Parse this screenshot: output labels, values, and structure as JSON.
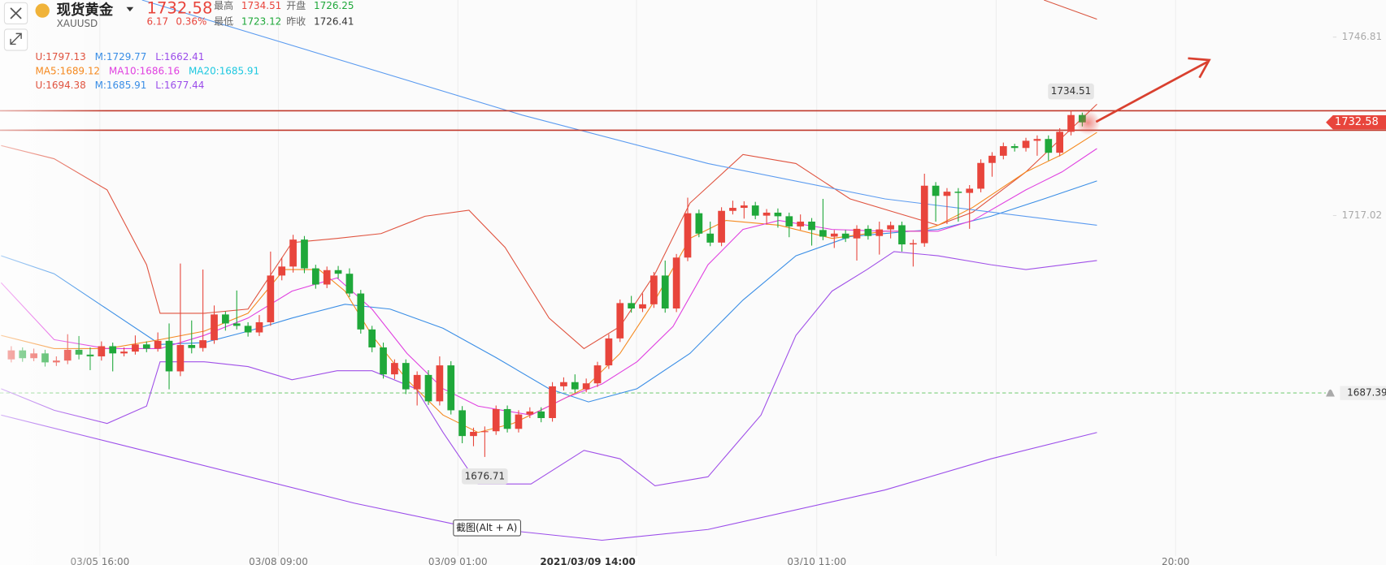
{
  "header": {
    "name": "现货黄金",
    "symbol": "XAUUSD",
    "price": "1732.58",
    "change": "6.17",
    "change_pct": "0.36%",
    "stats": [
      {
        "label": "最高",
        "value": "1734.51",
        "color": "#e8453c"
      },
      {
        "label": "开盘",
        "value": "1726.25",
        "color": "#1fa83a"
      },
      {
        "label": "最低",
        "value": "1723.12",
        "color": "#1fa83a"
      },
      {
        "label": "昨收",
        "value": "1726.41",
        "color": "#333333"
      }
    ]
  },
  "indicators": [
    [
      {
        "text": "U:1797.13",
        "color": "#e0533f"
      },
      {
        "text": "M:1729.77",
        "color": "#3a8ee6"
      },
      {
        "text": "L:1662.41",
        "color": "#9b4dea"
      }
    ],
    [
      {
        "text": "MA5:1689.12",
        "color": "#f5891f"
      },
      {
        "text": "MA10:1686.16",
        "color": "#e040e0"
      },
      {
        "text": "MA20:1685.91",
        "color": "#1ec8e0"
      }
    ],
    [
      {
        "text": "U:1694.38",
        "color": "#e0533f"
      },
      {
        "text": "M:1685.91",
        "color": "#3a8ee6"
      },
      {
        "text": "L:1677.44",
        "color": "#9b4dea"
      }
    ]
  ],
  "tooltip": "截图(Alt + A)",
  "chart_data": {
    "type": "candlestick",
    "up_color": "#e8453c",
    "down_color": "#1fa83a",
    "ylim": [
      1660,
      1753
    ],
    "yticks": [
      1746.81,
      1717.02
    ],
    "xlim": [
      -1,
      117
    ],
    "x_labels": [
      "03/05 16:00",
      "03/08 09:00",
      "03/09 01:00",
      "03/10 11:00",
      "20:00"
    ],
    "crosshair_label": "2021/03/09 14:00",
    "alert": 1687.39,
    "ohlc": [
      [
        1693.0,
        1695.2,
        1692.5,
        1694.5
      ],
      [
        1694.5,
        1695.0,
        1692.6,
        1693.2
      ],
      [
        1693.2,
        1694.8,
        1692.7,
        1694.0
      ],
      [
        1694.0,
        1694.6,
        1691.8,
        1692.5
      ],
      [
        1692.5,
        1693.5,
        1691.9,
        1692.8
      ],
      [
        1692.8,
        1697.2,
        1692.2,
        1694.6
      ],
      [
        1694.6,
        1696.9,
        1693.0,
        1693.8
      ],
      [
        1693.8,
        1695.0,
        1691.2,
        1693.5
      ],
      [
        1693.5,
        1696.0,
        1692.8,
        1695.2
      ],
      [
        1695.2,
        1695.8,
        1691.0,
        1694.0
      ],
      [
        1694.0,
        1695.0,
        1693.5,
        1694.3
      ],
      [
        1694.3,
        1697.0,
        1693.8,
        1695.5
      ],
      [
        1695.5,
        1696.0,
        1694.2,
        1694.8
      ],
      [
        1694.8,
        1697.5,
        1694.3,
        1696.1
      ],
      [
        1696.1,
        1699.0,
        1688.0,
        1691.0
      ],
      [
        1691.0,
        1709.0,
        1690.2,
        1695.4
      ],
      [
        1695.4,
        1699.5,
        1694.0,
        1694.9
      ],
      [
        1694.9,
        1708.0,
        1694.3,
        1696.2
      ],
      [
        1696.2,
        1702.0,
        1695.6,
        1700.5
      ],
      [
        1700.5,
        1701.0,
        1697.8,
        1699.0
      ],
      [
        1699.0,
        1704.5,
        1698.0,
        1698.6
      ],
      [
        1698.6,
        1699.2,
        1696.8,
        1697.5
      ],
      [
        1697.5,
        1700.4,
        1696.9,
        1699.2
      ],
      [
        1699.2,
        1711.0,
        1698.6,
        1707.0
      ],
      [
        1707.0,
        1710.0,
        1706.2,
        1708.5
      ],
      [
        1708.5,
        1713.8,
        1707.5,
        1713.0
      ],
      [
        1713.0,
        1713.6,
        1707.4,
        1708.2
      ],
      [
        1708.2,
        1708.8,
        1704.8,
        1705.5
      ],
      [
        1705.5,
        1708.5,
        1704.9,
        1707.9
      ],
      [
        1707.9,
        1708.6,
        1706.5,
        1707.3
      ],
      [
        1707.3,
        1708.2,
        1703.4,
        1704.0
      ],
      [
        1704.0,
        1704.6,
        1697.3,
        1698.0
      ],
      [
        1698.0,
        1698.6,
        1694.2,
        1695.0
      ],
      [
        1695.0,
        1695.8,
        1689.8,
        1690.5
      ],
      [
        1690.5,
        1693.0,
        1689.7,
        1692.4
      ],
      [
        1692.4,
        1693.0,
        1687.2,
        1688.0
      ],
      [
        1688.0,
        1691.0,
        1685.3,
        1690.4
      ],
      [
        1690.4,
        1691.2,
        1685.4,
        1686.0
      ],
      [
        1686.0,
        1693.5,
        1685.3,
        1692.0
      ],
      [
        1692.0,
        1692.7,
        1683.8,
        1684.5
      ],
      [
        1684.5,
        1685.2,
        1679.0,
        1680.2
      ],
      [
        1680.2,
        1681.6,
        1678.5,
        1680.9
      ],
      [
        1680.9,
        1681.8,
        1676.71,
        1681.0
      ],
      [
        1681.0,
        1685.3,
        1680.4,
        1684.7
      ],
      [
        1684.7,
        1685.3,
        1680.8,
        1681.4
      ],
      [
        1681.4,
        1684.5,
        1680.8,
        1683.8
      ],
      [
        1683.8,
        1685.0,
        1683.2,
        1684.3
      ],
      [
        1684.3,
        1685.0,
        1682.5,
        1683.2
      ],
      [
        1683.2,
        1689.2,
        1682.6,
        1688.5
      ],
      [
        1688.5,
        1690.0,
        1687.8,
        1689.2
      ],
      [
        1689.2,
        1690.5,
        1687.4,
        1688.0
      ],
      [
        1688.0,
        1689.8,
        1687.5,
        1689.0
      ],
      [
        1689.0,
        1692.6,
        1688.4,
        1692.0
      ],
      [
        1692.0,
        1697.2,
        1691.4,
        1696.5
      ],
      [
        1696.5,
        1703.0,
        1695.9,
        1702.4
      ],
      [
        1702.4,
        1703.6,
        1700.8,
        1701.5
      ],
      [
        1701.5,
        1704.0,
        1700.9,
        1702.2
      ],
      [
        1702.2,
        1707.6,
        1701.6,
        1707.0
      ],
      [
        1707.0,
        1709.5,
        1700.8,
        1701.5
      ],
      [
        1701.5,
        1710.6,
        1700.9,
        1710.0
      ],
      [
        1710.0,
        1720.0,
        1709.4,
        1717.4
      ],
      [
        1717.4,
        1718.0,
        1713.4,
        1714.0
      ],
      [
        1714.0,
        1716.0,
        1711.9,
        1712.5
      ],
      [
        1712.5,
        1718.4,
        1711.9,
        1717.8
      ],
      [
        1717.8,
        1719.5,
        1717.2,
        1718.3
      ],
      [
        1718.3,
        1719.4,
        1716.5,
        1718.7
      ],
      [
        1718.7,
        1719.3,
        1716.4,
        1717.0
      ],
      [
        1717.0,
        1718.1,
        1715.5,
        1717.5
      ],
      [
        1717.5,
        1718.2,
        1715.0,
        1716.9
      ],
      [
        1716.9,
        1717.5,
        1713.4,
        1715.2
      ],
      [
        1715.2,
        1717.2,
        1714.6,
        1716.0
      ],
      [
        1716.0,
        1716.6,
        1712.0,
        1714.6
      ],
      [
        1714.6,
        1719.8,
        1712.9,
        1713.5
      ],
      [
        1713.5,
        1714.6,
        1711.6,
        1714.0
      ],
      [
        1714.0,
        1714.6,
        1712.6,
        1713.2
      ],
      [
        1713.2,
        1715.4,
        1709.5,
        1714.8
      ],
      [
        1714.8,
        1715.4,
        1713.0,
        1713.6
      ],
      [
        1713.6,
        1716.0,
        1710.5,
        1714.7
      ],
      [
        1714.7,
        1716.0,
        1713.2,
        1715.4
      ],
      [
        1715.4,
        1716.0,
        1711.0,
        1712.2
      ],
      [
        1712.2,
        1713.0,
        1708.5,
        1712.4
      ],
      [
        1712.4,
        1724.0,
        1711.8,
        1722.0
      ],
      [
        1722.0,
        1722.6,
        1716.0,
        1720.3
      ],
      [
        1720.3,
        1721.6,
        1715.6,
        1721.0
      ],
      [
        1721.0,
        1721.6,
        1716.0,
        1720.8
      ],
      [
        1720.8,
        1722.1,
        1714.8,
        1721.5
      ],
      [
        1721.5,
        1726.4,
        1720.9,
        1725.8
      ],
      [
        1725.8,
        1727.6,
        1723.5,
        1727.0
      ],
      [
        1727.0,
        1729.2,
        1726.4,
        1728.6
      ],
      [
        1728.6,
        1729.0,
        1727.7,
        1728.3
      ],
      [
        1728.3,
        1730.0,
        1727.7,
        1729.5
      ],
      [
        1729.5,
        1730.4,
        1727.0,
        1729.8
      ],
      [
        1729.8,
        1730.4,
        1726.2,
        1727.5
      ],
      [
        1727.5,
        1731.6,
        1726.9,
        1731.0
      ],
      [
        1731.0,
        1734.51,
        1730.4,
        1733.8
      ],
      [
        1733.8,
        1734.2,
        1731.9,
        1732.58
      ]
    ],
    "lines": [
      {
        "color": "#e0533f",
        "x": [
          -0.9,
          3.8,
          8.5,
          12.0,
          13.2,
          17.1,
          21.0,
          24.9,
          28.9,
          32.8,
          36.7,
          40.6,
          43.8,
          47.7,
          50.8,
          54.0,
          57.1,
          60.2,
          64.9,
          69.6,
          74.4,
          78.3,
          82.2,
          85.3,
          90.0,
          96.3
        ],
        "values": [
          1728.7,
          1726.5,
          1721.3,
          1708.8,
          1700.7,
          1700.7,
          1701.4,
          1712.5,
          1713.2,
          1714.0,
          1716.9,
          1717.9,
          1711.7,
          1699.9,
          1694.8,
          1698.5,
          1707.3,
          1719.1,
          1727.2,
          1725.7,
          1719.8,
          1717.6,
          1715.4,
          1717.6,
          1724.3,
          1735.6
        ]
      },
      {
        "color": "#3a8ee6",
        "x": [
          -0.9,
          3.8,
          8.5,
          13.2,
          17.1,
          21.0,
          24.9,
          29.6,
          33.6,
          38.3,
          43.0,
          47.7,
          51.2,
          55.5,
          60.2,
          64.9,
          69.6,
          74.4,
          79.8,
          82.2,
          86.9,
          91.6,
          96.3
        ],
        "values": [
          1710.3,
          1707.3,
          1701.4,
          1695.5,
          1695.8,
          1697.7,
          1699.9,
          1702.2,
          1701.4,
          1698.2,
          1693.3,
          1688.1,
          1685.9,
          1688.1,
          1694.0,
          1702.9,
          1710.3,
          1713.5,
          1714.4,
          1714.7,
          1716.9,
          1719.8,
          1722.8
        ]
      },
      {
        "color": "#a050e8",
        "x": [
          -0.9,
          3.8,
          8.5,
          12.0,
          13.2,
          17.1,
          21.0,
          24.9,
          28.9,
          32.0,
          35.9,
          38.3,
          41.4,
          46.1,
          50.8,
          54.0,
          57.1,
          61.8,
          66.5,
          69.6,
          72.8,
          75.9,
          78.3,
          82.2,
          86.9,
          90.0,
          96.3
        ],
        "values": [
          1688.1,
          1684.5,
          1682.3,
          1685.2,
          1692.6,
          1692.6,
          1691.8,
          1689.6,
          1691.1,
          1691.1,
          1688.1,
          1680.8,
          1672.2,
          1672.2,
          1677.8,
          1676.4,
          1671.9,
          1673.4,
          1683.7,
          1697.0,
          1704.4,
          1708.0,
          1711.0,
          1710.3,
          1708.8,
          1708.0,
          1709.5
        ]
      },
      {
        "color": "#f5891f",
        "x": [
          -0.9,
          3.8,
          8.5,
          13.2,
          17.1,
          21.0,
          24.2,
          27.3,
          29.6,
          32.0,
          35.1,
          38.3,
          41.4,
          44.5,
          47.7,
          50.8,
          54.0,
          57.1,
          60.2,
          63.4,
          68.1,
          72.8,
          77.5,
          80.6,
          82.2,
          85.3,
          90.0,
          93.2,
          96.3
        ],
        "values": [
          1697.0,
          1694.8,
          1694.8,
          1696.3,
          1697.7,
          1700.7,
          1708.0,
          1708.0,
          1704.4,
          1697.0,
          1689.6,
          1683.7,
          1680.8,
          1682.3,
          1685.2,
          1688.1,
          1694.0,
          1702.9,
          1713.2,
          1716.2,
          1715.4,
          1713.2,
          1714.4,
          1714.4,
          1715.4,
          1718.4,
          1724.3,
          1727.2,
          1730.9
        ]
      },
      {
        "color": "#e040e0",
        "x": [
          -0.9,
          3.8,
          8.5,
          13.2,
          17.1,
          21.0,
          24.9,
          28.9,
          32.0,
          35.1,
          38.3,
          41.4,
          46.1,
          49.3,
          52.4,
          55.5,
          58.7,
          61.8,
          64.9,
          68.1,
          72.8,
          77.5,
          82.2,
          85.3,
          90.0,
          93.2,
          96.3
        ],
        "values": [
          1705.8,
          1696.3,
          1694.8,
          1694.8,
          1697.0,
          1699.9,
          1704.4,
          1706.6,
          1701.4,
          1694.0,
          1688.1,
          1685.2,
          1683.7,
          1686.7,
          1688.9,
          1692.6,
          1698.5,
          1708.8,
          1714.7,
          1716.2,
          1714.7,
          1714.4,
          1714.4,
          1716.2,
          1721.3,
          1724.3,
          1728.2
        ]
      },
      {
        "color": "#5b9bf0",
        "x": [
          11.6,
          45.3,
          61.8,
          77.5,
          96.3
        ],
        "values": [
          1753.0,
          1733.8,
          1725.7,
          1719.8,
          1715.4
        ]
      },
      {
        "color": "#9b4dea",
        "x": [
          -0.9,
          14.7,
          30.4,
          39.8,
          52.4,
          61.8,
          77.5,
          86.9,
          96.3
        ],
        "values": [
          1683.7,
          1676.4,
          1669.0,
          1665.3,
          1662.8,
          1664.6,
          1671.2,
          1676.4,
          1680.8
        ]
      },
      {
        "color": "#d9553f",
        "x": [
          91.6,
          96.3
        ],
        "values": [
          1753.0,
          1749.8
        ]
      }
    ]
  }
}
